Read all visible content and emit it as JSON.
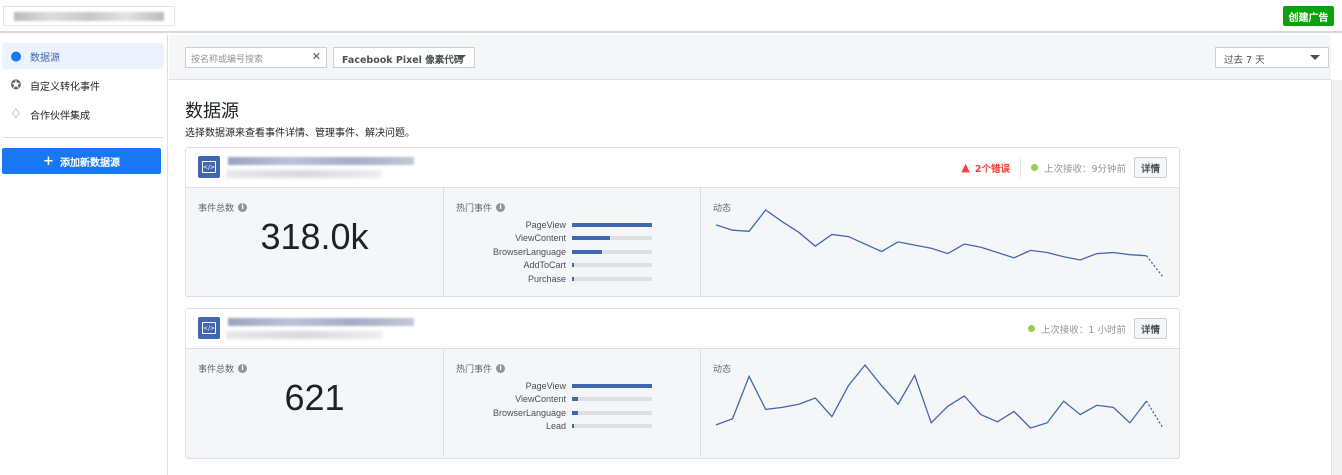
{
  "topbar": {
    "create_ad_label": "创建广告",
    "accent": "#0ca20c"
  },
  "sidebar": {
    "items": [
      {
        "label": "数据源",
        "icon": "people-icon",
        "active": true
      },
      {
        "label": "自定义转化事件",
        "icon": "star-circle-icon"
      },
      {
        "label": "合作伙伴集成",
        "icon": "handshake-icon"
      }
    ],
    "add_button": "添加新数据源"
  },
  "filters": {
    "search_placeholder": "按名称或编号搜索",
    "type_select": "Facebook Pixel 像素代码",
    "date_select": "过去 7 天"
  },
  "page": {
    "title": "数据源",
    "subtitle": "选择数据源来查看事件详情、管理事件、解决问题。"
  },
  "cards": [
    {
      "errors": "2个错误",
      "last_received": "上次接收：9分钟前",
      "detail_label": "详情",
      "total_label": "事件总数",
      "total": "318.0k",
      "top_events_label": "热门事件",
      "activity_label": "动态",
      "events": [
        {
          "name": "PageView",
          "share": 100
        },
        {
          "name": "ViewContent",
          "share": 47
        },
        {
          "name": "BrowserLanguage",
          "share": 38
        },
        {
          "name": "AddToCart",
          "share": 2
        },
        {
          "name": "Purchase",
          "share": 2
        }
      ],
      "activity": [
        67,
        62,
        61,
        81,
        70,
        60,
        47,
        58,
        56,
        49,
        42,
        51,
        48,
        45,
        40,
        49,
        46,
        41,
        36,
        43,
        41,
        37,
        34,
        40,
        41,
        39,
        38,
        18
      ]
    },
    {
      "errors": "",
      "last_received": "上次接收：1 小时前",
      "detail_label": "详情",
      "total_label": "事件总数",
      "total": "621",
      "top_events_label": "热门事件",
      "activity_label": "动态",
      "events": [
        {
          "name": "PageView",
          "share": 100
        },
        {
          "name": "ViewContent",
          "share": 7
        },
        {
          "name": "BrowserLanguage",
          "share": 7
        },
        {
          "name": "Lead",
          "share": 2
        }
      ],
      "activity": [
        12,
        18,
        59,
        27,
        29,
        32,
        38,
        20,
        50,
        70,
        50,
        32,
        60,
        14,
        30,
        40,
        22,
        15,
        25,
        9,
        14,
        35,
        22,
        31,
        29,
        14,
        35,
        9
      ]
    }
  ],
  "colors": {
    "primary": "#1877f2",
    "bar": "#4267b2",
    "error": "#fa3e3e",
    "online": "#8fd14f"
  }
}
